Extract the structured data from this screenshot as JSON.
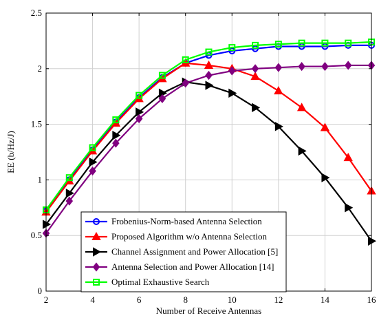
{
  "chart_data": {
    "type": "line",
    "title": "",
    "xlabel": "Number of Receive Antennas",
    "ylabel": "EE (b/Hz/J)",
    "xlim": [
      2,
      16
    ],
    "ylim": [
      0,
      2.5
    ],
    "xticks": [
      2,
      4,
      6,
      8,
      10,
      12,
      14,
      16
    ],
    "yticks": [
      0,
      0.5,
      1,
      1.5,
      2,
      2.5
    ],
    "xtick_labels": [
      "2",
      "4",
      "6",
      "8",
      "10",
      "12",
      "14",
      "16"
    ],
    "ytick_labels": [
      "0",
      "0.5",
      "1",
      "1.5",
      "2",
      "2.5"
    ],
    "grid": true,
    "legend_position": "bottom-center",
    "x": [
      2,
      3,
      4,
      5,
      6,
      7,
      8,
      9,
      10,
      11,
      12,
      13,
      14,
      15,
      16
    ],
    "series": [
      {
        "name": "Frobenius-Norm-based Antenna Selection",
        "color": "#0000ff",
        "marker": "circle",
        "values": [
          0.72,
          1.0,
          1.27,
          1.52,
          1.74,
          1.92,
          2.05,
          2.12,
          2.16,
          2.18,
          2.2,
          2.2,
          2.2,
          2.21,
          2.21
        ]
      },
      {
        "name": "Proposed Algorithm w/o Antenna Selection",
        "color": "#ff0000",
        "marker": "triangle-up",
        "values": [
          0.71,
          0.99,
          1.26,
          1.51,
          1.73,
          1.91,
          2.05,
          2.03,
          2.0,
          1.93,
          1.8,
          1.65,
          1.47,
          1.2,
          0.9
        ]
      },
      {
        "name": "Channel Assignment and Power Allocation [5]",
        "color": "#000000",
        "marker": "triangle-right",
        "values": [
          0.6,
          0.88,
          1.16,
          1.4,
          1.61,
          1.78,
          1.88,
          1.85,
          1.78,
          1.65,
          1.48,
          1.26,
          1.02,
          0.75,
          0.45
        ]
      },
      {
        "name": "Antenna Selection and Power Allocation [14]",
        "color": "#800080",
        "marker": "diamond",
        "values": [
          0.52,
          0.81,
          1.08,
          1.33,
          1.55,
          1.73,
          1.87,
          1.94,
          1.98,
          2.0,
          2.01,
          2.02,
          2.02,
          2.03,
          2.03
        ]
      },
      {
        "name": "Optimal Exhaustive Search",
        "color": "#00ff00",
        "marker": "square",
        "values": [
          0.73,
          1.02,
          1.29,
          1.54,
          1.76,
          1.94,
          2.08,
          2.15,
          2.19,
          2.21,
          2.22,
          2.23,
          2.23,
          2.23,
          2.24
        ]
      }
    ]
  }
}
